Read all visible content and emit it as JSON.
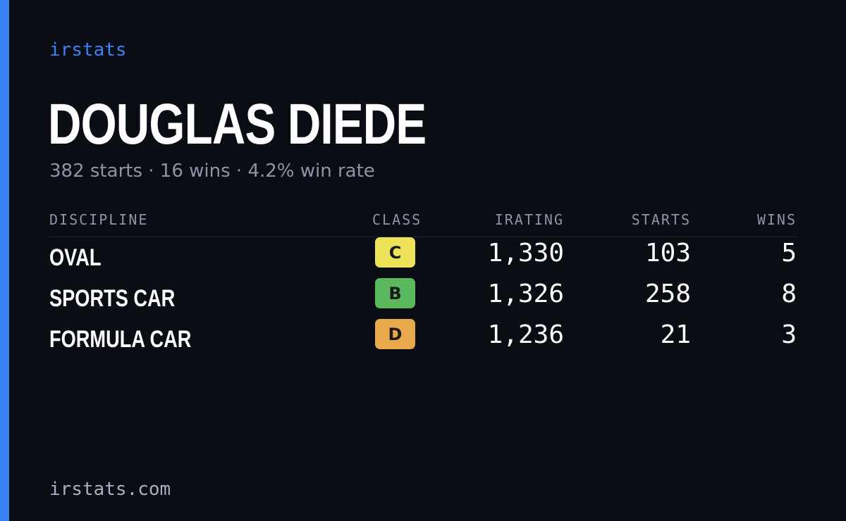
{
  "brand": "irstats",
  "driver": {
    "name": "DOUGLAS DIEDE",
    "summary": "382 starts · 16 wins · 4.2% win rate"
  },
  "colors": {
    "accent": "#3b82f6",
    "background": "#0a0d14",
    "muted": "#8b95a7"
  },
  "table": {
    "headers": {
      "discipline": "DISCIPLINE",
      "class": "CLASS",
      "irating": "IRATING",
      "starts": "STARTS",
      "wins": "WINS"
    },
    "rows": [
      {
        "discipline": "OVAL",
        "class": "C",
        "class_color": "#ede25a",
        "irating": "1,330",
        "starts": "103",
        "wins": "5"
      },
      {
        "discipline": "SPORTS CAR",
        "class": "B",
        "class_color": "#5cb85c",
        "irating": "1,326",
        "starts": "258",
        "wins": "8"
      },
      {
        "discipline": "FORMULA CAR",
        "class": "D",
        "class_color": "#e8a84c",
        "irating": "1,236",
        "starts": "21",
        "wins": "3"
      }
    ]
  },
  "footer": "irstats.com"
}
